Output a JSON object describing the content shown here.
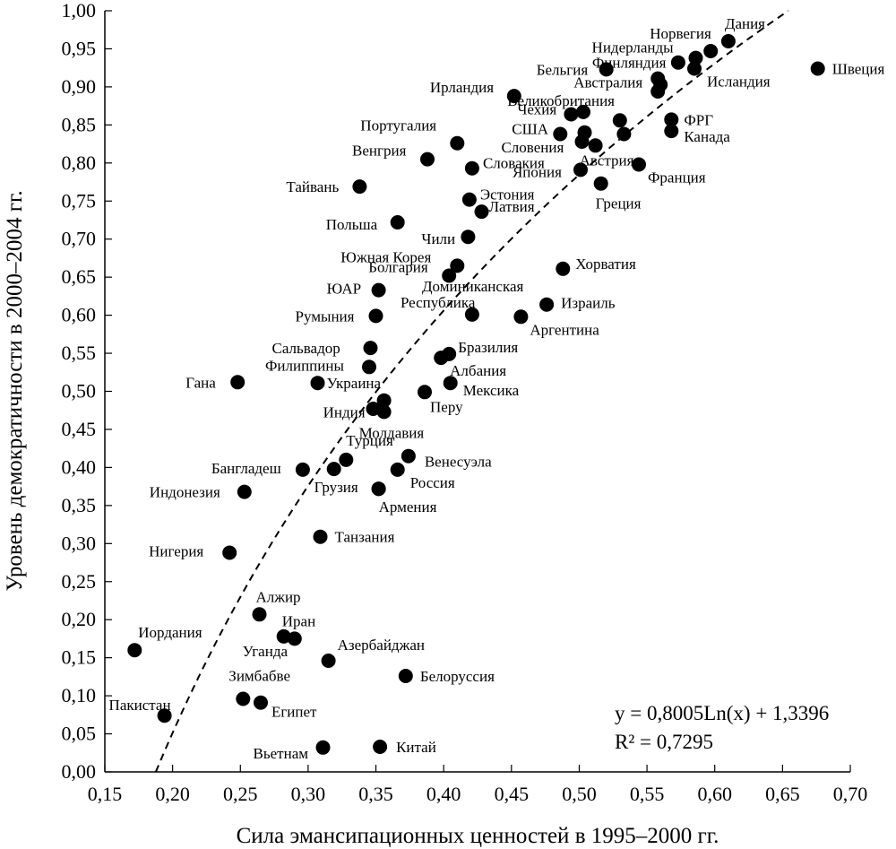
{
  "chart_data": {
    "type": "scatter",
    "xlabel": "Сила эмансипационных ценностей в 1995–2000 гг.",
    "ylabel": "Уровень демократичности в 2000–2004 гг.",
    "xlim": [
      0.15,
      0.7
    ],
    "ylim": [
      0.0,
      1.0
    ],
    "x_ticks": [
      "0,15",
      "0,20",
      "0,25",
      "0,30",
      "0,35",
      "0,40",
      "0,45",
      "0,50",
      "0,55",
      "0,60",
      "0,65",
      "0,70"
    ],
    "y_ticks": [
      "0,00",
      "0,05",
      "0,10",
      "0,15",
      "0,20",
      "0,25",
      "0,30",
      "0,35",
      "0,40",
      "0,45",
      "0,50",
      "0,55",
      "0,60",
      "0,65",
      "0,70",
      "0,75",
      "0,80",
      "0,85",
      "0,90",
      "0,95",
      "1,00"
    ],
    "trendline": {
      "type": "logarithmic",
      "a": 0.8005,
      "b": 1.3396,
      "style": "dashed"
    },
    "equation": "y = 0,8005Ln(x) + 1,3396",
    "r2": "R² = 0,7295",
    "grid": false,
    "points": [
      {
        "label": "Дания",
        "x": 0.61,
        "y": 0.96
      },
      {
        "label": "Норвегия",
        "x": 0.597,
        "y": 0.947
      },
      {
        "label": "Нидерланды",
        "x": 0.586,
        "y": 0.938
      },
      {
        "label": "Финляндия",
        "x": 0.573,
        "y": 0.932
      },
      {
        "label": "Исландия",
        "x": 0.585,
        "y": 0.924
      },
      {
        "label": "Швеция",
        "x": 0.676,
        "y": 0.924
      },
      {
        "label": "Бельгия",
        "x": 0.52,
        "y": 0.923
      },
      {
        "label": "Австралия",
        "x": 0.558,
        "y": 0.911
      },
      {
        "label": "Великобритания",
        "x": 0.558,
        "y": 0.894
      },
      {
        "label": "",
        "x": 0.56,
        "y": 0.903
      },
      {
        "label": "Ирландия",
        "x": 0.452,
        "y": 0.888
      },
      {
        "label": "Чехия",
        "x": 0.494,
        "y": 0.864
      },
      {
        "label": "",
        "x": 0.503,
        "y": 0.867
      },
      {
        "label": "ФРГ",
        "x": 0.568,
        "y": 0.857
      },
      {
        "label": "",
        "x": 0.53,
        "y": 0.856
      },
      {
        "label": "Канада",
        "x": 0.568,
        "y": 0.842
      },
      {
        "label": "США",
        "x": 0.486,
        "y": 0.838
      },
      {
        "label": "",
        "x": 0.504,
        "y": 0.84
      },
      {
        "label": "",
        "x": 0.533,
        "y": 0.838
      },
      {
        "label": "Словения",
        "x": 0.502,
        "y": 0.828
      },
      {
        "label": "Австрия",
        "x": 0.512,
        "y": 0.823
      },
      {
        "label": "Португалия",
        "x": 0.41,
        "y": 0.826
      },
      {
        "label": "Венгрия",
        "x": 0.388,
        "y": 0.805
      },
      {
        "label": "Словакия",
        "x": 0.421,
        "y": 0.793
      },
      {
        "label": "Франция",
        "x": 0.544,
        "y": 0.798
      },
      {
        "label": "Япония",
        "x": 0.501,
        "y": 0.791
      },
      {
        "label": "Греция",
        "x": 0.516,
        "y": 0.773
      },
      {
        "label": "Тайвань",
        "x": 0.338,
        "y": 0.769
      },
      {
        "label": "Эстония",
        "x": 0.419,
        "y": 0.752
      },
      {
        "label": "Латвия",
        "x": 0.428,
        "y": 0.736
      },
      {
        "label": "Польша",
        "x": 0.366,
        "y": 0.722
      },
      {
        "label": "Чили",
        "x": 0.418,
        "y": 0.703
      },
      {
        "label": "Южная Корея",
        "x": 0.41,
        "y": 0.665
      },
      {
        "label": "Хорватия",
        "x": 0.488,
        "y": 0.661
      },
      {
        "label": "Болгария",
        "x": 0.404,
        "y": 0.652
      },
      {
        "label": "ЮАР",
        "x": 0.352,
        "y": 0.633
      },
      {
        "label": "Израиль",
        "x": 0.476,
        "y": 0.614
      },
      {
        "label": "Доминиканская Республика",
        "x": 0.421,
        "y": 0.601
      },
      {
        "label": "Румыния",
        "x": 0.35,
        "y": 0.599
      },
      {
        "label": "Аргентина",
        "x": 0.457,
        "y": 0.598
      },
      {
        "label": "Сальвадор",
        "x": 0.346,
        "y": 0.557
      },
      {
        "label": "Бразилия",
        "x": 0.404,
        "y": 0.549
      },
      {
        "label": "Албания",
        "x": 0.398,
        "y": 0.544
      },
      {
        "label": "Филиппины",
        "x": 0.345,
        "y": 0.532
      },
      {
        "label": "Гана",
        "x": 0.248,
        "y": 0.512
      },
      {
        "label": "Украина",
        "x": 0.307,
        "y": 0.511
      },
      {
        "label": "Мексика",
        "x": 0.405,
        "y": 0.511
      },
      {
        "label": "Перу",
        "x": 0.386,
        "y": 0.499
      },
      {
        "label": "Молдавия",
        "x": 0.356,
        "y": 0.488
      },
      {
        "label": "Индия",
        "x": 0.356,
        "y": 0.473
      },
      {
        "label": "",
        "x": 0.348,
        "y": 0.477
      },
      {
        "label": "Венесуэла",
        "x": 0.374,
        "y": 0.415
      },
      {
        "label": "Турция",
        "x": 0.328,
        "y": 0.41
      },
      {
        "label": "Бангладеш",
        "x": 0.296,
        "y": 0.397
      },
      {
        "label": "",
        "x": 0.319,
        "y": 0.398
      },
      {
        "label": "Россия",
        "x": 0.366,
        "y": 0.397
      },
      {
        "label": "Грузия",
        "x": 0.352,
        "y": 0.372
      },
      {
        "label": "Армения",
        "x": 0.352,
        "y": 0.372
      },
      {
        "label": "Индонезия",
        "x": 0.253,
        "y": 0.368
      },
      {
        "label": "Танзания",
        "x": 0.309,
        "y": 0.309
      },
      {
        "label": "Нигерия",
        "x": 0.242,
        "y": 0.288
      },
      {
        "label": "Алжир",
        "x": 0.264,
        "y": 0.207
      },
      {
        "label": "Иран",
        "x": 0.29,
        "y": 0.175
      },
      {
        "label": "Уганда",
        "x": 0.282,
        "y": 0.178
      },
      {
        "label": "Иордания",
        "x": 0.172,
        "y": 0.16
      },
      {
        "label": "Азербайджан",
        "x": 0.315,
        "y": 0.146
      },
      {
        "label": "Белоруссия",
        "x": 0.372,
        "y": 0.126
      },
      {
        "label": "Зимбабве",
        "x": 0.252,
        "y": 0.096
      },
      {
        "label": "Египет",
        "x": 0.265,
        "y": 0.091
      },
      {
        "label": "Пакистан",
        "x": 0.194,
        "y": 0.074
      },
      {
        "label": "Вьетнам",
        "x": 0.311,
        "y": 0.032
      },
      {
        "label": "Китай",
        "x": 0.353,
        "y": 0.033
      }
    ]
  }
}
